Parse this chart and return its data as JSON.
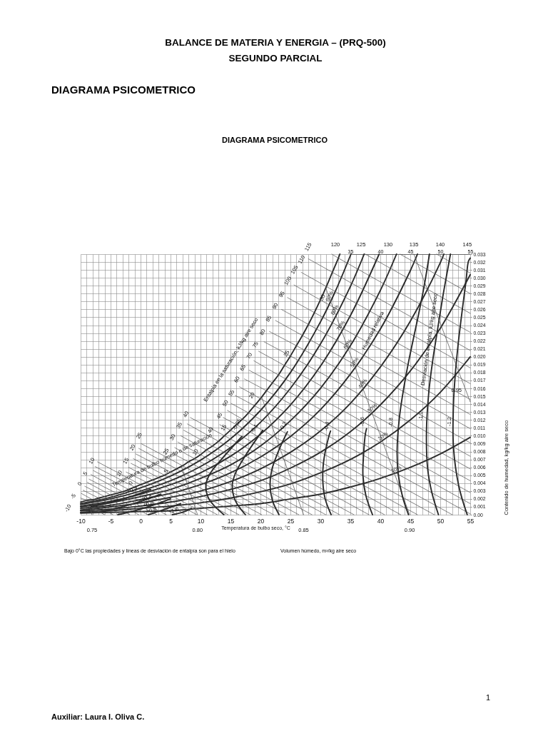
{
  "chart_data": {
    "type": "line",
    "title": "BALANCE DE MATERIA Y ENERGIA – (PRQ-500)",
    "subtitle": "SEGUNDO PARCIAL",
    "xlabel": "Temperatura de bulbo seco, °C",
    "ylabel": "Contenido de humedad, kg/kg aire seco",
    "xlim": [
      -10,
      55
    ],
    "xticks": [
      -10,
      {
        "value": -9,
        "label": null
      },
      {
        "value": -8,
        "label": null
      },
      {
        "value": -7,
        "label": null
      },
      {
        "value": -6,
        "label": null
      },
      -5,
      {
        "value": -4,
        "label": null
      },
      {
        "value": -3,
        "label": null
      },
      {
        "value": -2,
        "label": null
      },
      {
        "value": -1,
        "label": null
      },
      0,
      {
        "value": 1,
        "label": null
      },
      {
        "value": 2,
        "label": null
      },
      {
        "value": 3,
        "label": null
      },
      {
        "value": 4,
        "label": null
      },
      5,
      {
        "value": 6,
        "label": null
      },
      {
        "value": 7,
        "label": null
      },
      {
        "value": 8,
        "label": null
      },
      {
        "value": 9,
        "label": null
      },
      10,
      {
        "value": 11,
        "label": null
      },
      {
        "value": 12,
        "label": null
      },
      {
        "value": 13,
        "label": null
      },
      {
        "value": 14,
        "label": null
      },
      15,
      {
        "value": 16,
        "label": null
      },
      {
        "value": 17,
        "label": null
      },
      {
        "value": 18,
        "label": null
      },
      {
        "value": 19,
        "label": null
      },
      20,
      {
        "value": 21,
        "label": null
      },
      {
        "value": 22,
        "label": null
      },
      {
        "value": 23,
        "label": null
      },
      {
        "value": 24,
        "label": null
      },
      25,
      {
        "value": 26,
        "label": null
      },
      {
        "value": 27,
        "label": null
      },
      {
        "value": 28,
        "label": null
      },
      {
        "value": 29,
        "label": null
      },
      30,
      {
        "value": 31,
        "label": null
      },
      {
        "value": 32,
        "label": null
      },
      {
        "value": 33,
        "label": null
      },
      {
        "value": 34,
        "label": null
      },
      35,
      {
        "value": 36,
        "label": null
      },
      {
        "value": 37,
        "label": null
      },
      {
        "value": 38,
        "label": null
      },
      {
        "value": 39,
        "label": null
      },
      40,
      {
        "value": 41,
        "label": null
      },
      {
        "value": 42,
        "label": null
      },
      {
        "value": 43,
        "label": null
      },
      {
        "value": 44,
        "label": null
      },
      45,
      {
        "value": 46,
        "label": null
      },
      {
        "value": 47,
        "label": null
      },
      {
        "value": 48,
        "label": null
      },
      {
        "value": 49,
        "label": null
      },
      50,
      {
        "value": 51,
        "label": null
      },
      {
        "value": 52,
        "label": null
      },
      {
        "value": 53,
        "label": null
      },
      {
        "value": 54,
        "label": null
      },
      55
    ],
    "x2lim": [
      35,
      55
    ],
    "x2ticks": [
      35,
      40,
      45,
      50,
      55
    ],
    "ylim": [
      0,
      0.033
    ],
    "yticks": [
      {
        "value": 0,
        "label": "0.00"
      },
      0.001,
      0.002,
      0.003,
      0.004,
      0.005,
      0.006,
      0.007,
      0.008,
      0.009,
      {
        "value": 0.01,
        "label": "0.010"
      },
      0.011,
      0.012,
      0.013,
      0.014,
      0.015,
      0.016,
      0.017,
      0.018,
      0.019,
      {
        "value": 0.02,
        "label": "0.020"
      },
      0.021,
      0.022,
      0.023,
      0.024,
      0.025,
      0.026,
      0.027,
      0.028,
      0.029,
      {
        "value": 0.03,
        "label": "0.030"
      },
      0.031,
      0.032,
      0.033
    ],
    "grid": true,
    "series": [
      {
        "name": "10%",
        "color": "#2b2b2b",
        "x": [
          -10,
          -5,
          0,
          5,
          10,
          15,
          20,
          25,
          30,
          35,
          40,
          45,
          50,
          55
        ],
        "values": [
          0.0002,
          0.0003,
          0.0004,
          0.0005,
          0.0008,
          0.0011,
          0.0014,
          0.002,
          0.0026,
          0.0035,
          0.0046,
          0.006,
          0.0077,
          0.0098
        ]
      },
      {
        "name": "20%",
        "color": "#2b2b2b",
        "x": [
          -10,
          -5,
          0,
          5,
          10,
          15,
          20,
          25,
          30,
          35,
          40,
          45,
          50,
          55
        ],
        "values": [
          0.0003,
          0.0005,
          0.0008,
          0.0011,
          0.0015,
          0.0021,
          0.0029,
          0.0039,
          0.0053,
          0.007,
          0.0092,
          0.012,
          0.0155,
          0.02
        ]
      },
      {
        "name": "30%",
        "color": "#2b2b2b",
        "x": [
          -10,
          -5,
          0,
          5,
          10,
          15,
          20,
          25,
          30,
          35,
          40,
          45,
          50,
          55
        ],
        "values": [
          0.0005,
          0.0007,
          0.0011,
          0.0016,
          0.0023,
          0.0032,
          0.0043,
          0.0059,
          0.0079,
          0.0105,
          0.0139,
          0.0182,
          0.0236,
          0.0304
        ]
      },
      {
        "name": "40%",
        "color": "#2b2b2b",
        "x": [
          -10,
          -5,
          0,
          5,
          10,
          15,
          20,
          25,
          30,
          35,
          40,
          45,
          50,
          50.6
        ],
        "values": [
          0.0006,
          0.001,
          0.0015,
          0.0022,
          0.003,
          0.0042,
          0.0058,
          0.0079,
          0.0106,
          0.0141,
          0.0187,
          0.0245,
          0.0319,
          0.033
        ]
      },
      {
        "name": "50%",
        "color": "#2b2b2b",
        "x": [
          -10,
          -5,
          0,
          5,
          10,
          15,
          20,
          25,
          30,
          35,
          40,
          45,
          46.2
        ],
        "values": [
          0.0008,
          0.0012,
          0.0019,
          0.0027,
          0.0038,
          0.0053,
          0.0073,
          0.0099,
          0.0133,
          0.0178,
          0.0235,
          0.0309,
          0.033
        ]
      },
      {
        "name": "60%",
        "color": "#2b2b2b",
        "x": [
          -10,
          -5,
          0,
          5,
          10,
          15,
          20,
          25,
          30,
          35,
          40,
          42.7
        ],
        "values": [
          0.001,
          0.0015,
          0.0023,
          0.0032,
          0.0046,
          0.0063,
          0.0087,
          0.0119,
          0.016,
          0.0214,
          0.0284,
          0.033
        ]
      },
      {
        "name": "70%",
        "color": "#2b2b2b",
        "x": [
          -10,
          -5,
          0,
          5,
          10,
          15,
          20,
          25,
          30,
          35,
          39.8
        ],
        "values": [
          0.0011,
          0.0017,
          0.0026,
          0.0038,
          0.0053,
          0.0074,
          0.0102,
          0.0139,
          0.0188,
          0.0252,
          0.033
        ]
      },
      {
        "name": "80%",
        "color": "#2b2b2b",
        "x": [
          -10,
          -5,
          0,
          5,
          10,
          15,
          20,
          25,
          30,
          35,
          37.3
        ],
        "values": [
          0.0013,
          0.002,
          0.003,
          0.0043,
          0.0061,
          0.0085,
          0.0117,
          0.016,
          0.0216,
          0.0289,
          0.033
        ]
      },
      {
        "name": "90%",
        "color": "#2b2b2b",
        "x": [
          -10,
          -5,
          0,
          5,
          10,
          15,
          20,
          25,
          30,
          32.5,
          35.1
        ],
        "values": [
          0.0014,
          0.0022,
          0.0034,
          0.0049,
          0.0069,
          0.0096,
          0.0132,
          0.018,
          0.0244,
          0.0283,
          0.033
        ]
      },
      {
        "color": "#2b2b2b",
        "x": [
          -10,
          -9,
          -8,
          -7,
          -6,
          -5,
          -4,
          -3,
          -2,
          -1,
          0,
          1,
          2,
          3,
          4,
          5,
          6,
          7,
          8,
          9,
          10,
          11,
          12,
          13,
          14,
          15,
          16,
          17,
          18,
          19,
          20,
          21,
          22,
          23,
          24,
          25,
          26,
          27,
          28,
          29,
          30,
          31,
          32,
          33,
          33.25
        ],
        "values": [
          0.0016,
          0.0018,
          0.0019,
          0.0021,
          0.0023,
          0.0025,
          0.0027,
          0.0029,
          0.0032,
          0.0035,
          0.0038,
          0.0041,
          0.0044,
          0.0047,
          0.005,
          0.0054,
          0.0058,
          0.0062,
          0.0067,
          0.0071,
          0.0076,
          0.0082,
          0.0087,
          0.0093,
          0.01,
          0.0107,
          0.0114,
          0.0121,
          0.0129,
          0.0138,
          0.0147,
          0.0157,
          0.0167,
          0.0177,
          0.0189,
          0.0201,
          0.0214,
          0.0227,
          0.0241,
          0.0256,
          0.0272,
          0.0289,
          0.0307,
          0.0325,
          0.033
        ]
      },
      {
        "color": "#555555",
        "x": [
          -10,
          -6.0
        ],
        "values": [
          0.0016,
          0
        ]
      },
      {
        "color": "#555555",
        "x": [
          -10,
          -9,
          -4.6
        ],
        "values": [
          0.0021,
          0.0018,
          0
        ]
      },
      {
        "color": "#555555",
        "x": [
          -9.9,
          -8,
          -3.2
        ],
        "values": [
          0.0027,
          0.0019,
          0
        ]
      },
      {
        "color": "#555555",
        "x": [
          -9.6,
          -7,
          -1.8
        ],
        "values": [
          0.0031,
          0.0021,
          0
        ]
      },
      {
        "color": "#555555",
        "x": [
          -9.3,
          -6,
          -0.3
        ],
        "values": [
          0.0036,
          0.0023,
          0
        ]
      },
      {
        "color": "#555555",
        "x": [
          -8.9,
          -5,
          1.2
        ],
        "values": [
          0.0041,
          0.0025,
          0
        ]
      },
      {
        "color": "#555555",
        "x": [
          -8.6,
          -4,
          2.7
        ],
        "values": [
          0.0045,
          0.0027,
          0
        ]
      },
      {
        "color": "#555555",
        "x": [
          -8.3,
          -3,
          4.3
        ],
        "values": [
          0.0051,
          0.0029,
          0
        ]
      },
      {
        "color": "#555555",
        "x": [
          -7.9,
          -2,
          6.0
        ],
        "values": [
          0.0056,
          0.0032,
          0
        ]
      },
      {
        "color": "#555555",
        "x": [
          -7.6,
          -1,
          7.6
        ],
        "values": [
          0.0061,
          0.0035,
          0
        ]
      },
      {
        "color": "#555555",
        "x": [
          -7.2,
          0,
          9.4
        ],
        "values": [
          0.0067,
          0.0038,
          0
        ]
      },
      {
        "color": "#555555",
        "x": [
          -2.4,
          1,
          11.1
        ],
        "values": [
          0.0054,
          0.0041,
          0
        ]
      },
      {
        "color": "#555555",
        "x": [
          -2.0,
          2,
          12.8
        ],
        "values": [
          0.006,
          0.0044,
          0
        ]
      },
      {
        "color": "#555555",
        "x": [
          -1.6,
          3,
          14.6
        ],
        "values": [
          0.0065,
          0.0047,
          0
        ]
      },
      {
        "color": "#555555",
        "x": [
          -1.2,
          4,
          16.4
        ],
        "values": [
          0.0071,
          0.005,
          0
        ]
      },
      {
        "color": "#555555",
        "x": [
          -0.8,
          5,
          18.3
        ],
        "values": [
          0.0077,
          0.0054,
          0
        ]
      },
      {
        "color": "#555555",
        "x": [
          -0.3,
          6,
          20.2
        ],
        "values": [
          0.0084,
          0.0058,
          0
        ]
      },
      {
        "color": "#555555",
        "x": [
          0.1,
          7,
          22.2
        ],
        "values": [
          0.009,
          0.0062,
          0
        ]
      },
      {
        "color": "#555555",
        "x": [
          5.2,
          8,
          24.3
        ],
        "values": [
          0.0078,
          0.0067,
          0
        ]
      },
      {
        "color": "#555555",
        "x": [
          5.7,
          9,
          26.4
        ],
        "values": [
          0.0085,
          0.0071,
          0
        ]
      },
      {
        "color": "#555555",
        "x": [
          6.2,
          10,
          28.6
        ],
        "values": [
          0.0092,
          0.0076,
          0
        ]
      },
      {
        "color": "#555555",
        "x": [
          6.7,
          11,
          30.9
        ],
        "values": [
          0.01,
          0.0082,
          0
        ]
      },
      {
        "color": "#555555",
        "x": [
          7.2,
          12,
          33.2
        ],
        "values": [
          0.0107,
          0.0087,
          0
        ]
      },
      {
        "color": "#555555",
        "x": [
          7.8,
          13,
          35.6
        ],
        "values": [
          0.0115,
          0.0093,
          0
        ]
      },
      {
        "color": "#555555",
        "x": [
          8.3,
          14,
          38.1
        ],
        "values": [
          0.0123,
          0.01,
          0
        ]
      },
      {
        "color": "#555555",
        "x": [
          13.2,
          15,
          40.7
        ],
        "values": [
          0.0114,
          0.0107,
          0
        ]
      },
      {
        "color": "#555555",
        "x": [
          13.8,
          16,
          43.4
        ],
        "values": [
          0.0123,
          0.0114,
          0
        ]
      },
      {
        "color": "#555555",
        "x": [
          14.5,
          17,
          46.2
        ],
        "values": [
          0.0132,
          0.0121,
          0
        ]
      },
      {
        "color": "#555555",
        "x": [
          15.1,
          18,
          49.0
        ],
        "values": [
          0.0141,
          0.0129,
          0
        ]
      },
      {
        "color": "#555555",
        "x": [
          15.8,
          19,
          52.0
        ],
        "values": [
          0.0151,
          0.0138,
          0
        ]
      },
      {
        "color": "#555555",
        "x": [
          16.5,
          20,
          55
        ],
        "values": [
          0.0162,
          0.0147,
          0.0001
        ]
      },
      {
        "color": "#555555",
        "x": [
          17.3,
          21,
          55
        ],
        "values": [
          0.0172,
          0.0157,
          0.0014
        ]
      },
      {
        "color": "#555555",
        "x": [
          18.1,
          22,
          55
        ],
        "values": [
          0.0183,
          0.0167,
          0.0028
        ]
      },
      {
        "color": "#555555",
        "x": [
          18.9,
          23,
          55
        ],
        "values": [
          0.0195,
          0.0177,
          0.0043
        ]
      },
      {
        "color": "#555555",
        "x": [
          19.7,
          24,
          55
        ],
        "values": [
          0.0207,
          0.0189,
          0.0058
        ]
      },
      {
        "color": "#555555",
        "x": [
          20.6,
          25,
          55
        ],
        "values": [
          0.0219,
          0.0201,
          0.0074
        ]
      },
      {
        "color": "#555555",
        "x": [
          21.5,
          26,
          55
        ],
        "values": [
          0.0232,
          0.0214,
          0.0091
        ]
      },
      {
        "color": "#555555",
        "x": [
          22.5,
          27,
          55
        ],
        "values": [
          0.0246,
          0.0227,
          0.0109
        ]
      },
      {
        "color": "#555555",
        "x": [
          23.5,
          28,
          55
        ],
        "values": [
          0.026,
          0.0241,
          0.0127
        ]
      },
      {
        "color": "#555555",
        "x": [
          24.5,
          29,
          55
        ],
        "values": [
          0.0275,
          0.0256,
          0.0146
        ]
      },
      {
        "color": "#555555",
        "x": [
          25.6,
          30,
          55
        ],
        "values": [
          0.0291,
          0.0272,
          0.0166
        ]
      },
      {
        "color": "#555555",
        "x": [
          26.8,
          31,
          55
        ],
        "values": [
          0.0307,
          0.0289,
          0.0186
        ]
      },
      {
        "color": "#555555",
        "x": [
          28.0,
          32,
          55
        ],
        "values": [
          0.0324,
          0.0307,
          0.0208
        ]
      },
      {
        "color": "#555555",
        "x": [
          31.9,
          33,
          55
        ],
        "values": [
          0.033,
          0.0325,
          0.0231
        ]
      },
      {
        "color": "#555555",
        "x": [
          37.5,
          55
        ],
        "values": [
          0.033,
          0.0255
        ]
      },
      {
        "color": "#555555",
        "x": [
          43.3,
          55
        ],
        "values": [
          0.033,
          0.028
        ]
      },
      {
        "color": "#555555",
        "x": [
          49.4,
          55
        ],
        "values": [
          0.033,
          0.0306
        ]
      },
      {
        "color": "#555555",
        "x": [
          -8.1,
          -8.9
        ],
        "values": [
          0,
          0.0018
        ]
      },
      {
        "color": "#555555",
        "x": [
          9.5,
          6.8
        ],
        "values": [
          0,
          0.0061
        ]
      },
      {
        "color": "#555555",
        "x": [
          27.2,
          20.2
        ],
        "values": [
          0,
          0.0149
        ]
      },
      {
        "color": "#555555",
        "x": [
          44.9,
          30.9
        ],
        "values": [
          0,
          0.0287
        ]
      },
      {
        "color": "#555555",
        "x": [
          55,
          45.6
        ],
        "values": [
          0.0143,
          0.033
        ]
      },
      {
        "color": "#2b2b2b",
        "x": [
          13.9,
          11.4,
          10.9,
          11.6,
          13.6,
          16.9
        ],
        "values": [
          0,
          0.002,
          0.0038,
          0.0052,
          0.0071,
          0.0099
        ]
      },
      {
        "color": "#2b2b2b",
        "x": [
          17.5,
          15.8,
          15.3,
          15.8,
          17.5,
          20.4
        ],
        "values": [
          0,
          0.0018,
          0.0037,
          0.0052,
          0.0075,
          0.0107
        ]
      },
      {
        "color": "#2b2b2b",
        "x": [
          23.1,
          22.0,
          21.6,
          21.9,
          23.2,
          24.5
        ],
        "values": [
          0,
          0.0018,
          0.0038,
          0.0057,
          0.0084,
          0.0105
        ]
      },
      {
        "color": "#2b2b2b",
        "x": [
          31.8,
          30.8,
          30.4,
          30.5,
          31.4,
          31.7
        ],
        "values": [
          0,
          0.002,
          0.0043,
          0.0065,
          0.0099,
          0.0106
        ]
      },
      {
        "color": "#2b2b2b",
        "x": [
          38.7,
          37.6,
          37.1,
          37.2,
          37.5,
          37.7
        ],
        "values": [
          0,
          0.0024,
          0.005,
          0.0075,
          0.0102,
          0.0109
        ]
      },
      {
        "color": "#2b2b2b",
        "x": [
          44.7,
          43.7,
          43.0,
          42.8,
          43.2,
          44.2,
          45.1,
          46.2,
          47.3,
          48.2
        ],
        "values": [
          0,
          0.0023,
          0.0051,
          0.008,
          0.0124,
          0.0173,
          0.0208,
          0.0247,
          0.0289,
          0.033
        ]
      },
      {
        "color": "#2b2b2b",
        "x": [
          49.7,
          48.6,
          47.9,
          47.7,
          48.1,
          48.7,
          49.5,
          50.4,
          51.2,
          51.7
        ],
        "values": [
          0,
          0.0028,
          0.0058,
          0.0105,
          0.0156,
          0.0193,
          0.0232,
          0.0275,
          0.0309,
          0.033
        ]
      },
      {
        "color": "#2b2b2b",
        "x": [
          54.5,
          53.1,
          52.2,
          52.2,
          52.5,
          53.0,
          53.7,
          54.3,
          54.7,
          55
        ],
        "values": [
          0,
          0.0036,
          0.0086,
          0.0139,
          0.0177,
          0.0217,
          0.0261,
          0.0296,
          0.0321,
          0.0325
        ]
      },
      {
        "color": "#2b2b2b",
        "x": [
          -8.3,
          -3.3,
          1.7
        ],
        "values": [
          0.001,
          0.0019,
          0.0032
        ]
      },
      {
        "color": "#2b2b2b",
        "x": [
          -6.6,
          -1.6,
          3.4
        ],
        "values": [
          0.0004,
          0.0013,
          0.0026
        ]
      },
      {
        "color": "#2b2b2b",
        "x": [
          -3.8,
          0.0,
          5.0
        ],
        "values": [
          0,
          0.0007,
          0.002
        ]
      },
      {
        "color": "#2b2b2b",
        "x": [
          1.3,
          3.7,
          6.7
        ],
        "values": [
          0,
          0.0006,
          0.0014
        ]
      },
      {
        "color": "#2b2b2b",
        "x": [
          5.3,
          7.0,
          8.5
        ],
        "values": [
          0,
          0.0003,
          0.0008
        ]
      }
    ],
    "annotations": [
      "DIAGRAMA PSICOMETRICO",
      "DIAGRAMA PSICOMETRICO",
      "Bajo 0°C las propiedades y líneas de desviación de entalpía son para el hielo",
      "Volumen húmedo, m³/kg aire seco",
      "Auxiliar: Laura I. Oliva C.",
      "1",
      "-10",
      "-5",
      "0",
      "5",
      "10",
      "10",
      "15",
      "20",
      "25",
      "25",
      "30",
      "35",
      "40",
      "40",
      "45",
      "50",
      "55",
      "60",
      "65",
      "70",
      "75",
      "80",
      "85",
      "90",
      "95",
      "100",
      "105",
      "110",
      "115",
      "120",
      "125",
      "130",
      "135",
      "140",
      "145",
      "Entalpía en la saturación, kJ/kg aire seco",
      {
        "text": "Temperatura de bulbo húmedo o de saturación",
        "x": 3.6,
        "y": 0.0069
      },
      {
        "text": "0",
        "x": -1.6,
        "y": 0.004
      },
      {
        "text": "5",
        "x": 4.3,
        "y": 0.0055
      },
      {
        "text": "10",
        "x": 9.2,
        "y": 0.0079
      },
      {
        "text": "15",
        "x": 13.9,
        "y": 0.011
      },
      {
        "text": "20",
        "x": 18.6,
        "y": 0.0151
      },
      {
        "text": "25",
        "x": 24.4,
        "y": 0.0204
      },
      {
        "text": "30",
        "x": 30.4,
        "y": 0.0275
      },
      {
        "text": "Humedad relativa",
        "x": 38.8,
        "y": 0.0233
      },
      {
        "text": "Desviación de entalpía, kJ/kg aire seco",
        "x": 48.2,
        "y": 0.0222
      },
      {
        "text": "-0.05",
        "x": 16.1,
        "y": 0.0114
      },
      {
        "text": "-0.1",
        "x": 19.0,
        "y": 0.0109
      },
      {
        "text": "-0.2",
        "x": 23.8,
        "y": 0.0112
      },
      {
        "text": "-0.4",
        "x": 31.1,
        "y": 0.0112
      },
      {
        "text": "-0.6",
        "x": 37.0,
        "y": 0.0118
      },
      {
        "text": "-0.8",
        "x": 41.8,
        "y": 0.0117
      },
      {
        "text": "-1.0",
        "x": 46.8,
        "y": 0.0125
      },
      {
        "text": "-1.2",
        "x": 51.6,
        "y": 0.0118
      },
      {
        "text": "+0.2",
        "x": -1.4,
        "y": 0.0031
      },
      {
        "text": "+0.4",
        "x": 1.0,
        "y": 0.0021
      },
      {
        "text": "+0.6",
        "x": 1.3,
        "y": 0.0013
      },
      {
        "text": "+0.8",
        "x": 1.8,
        "y": 0.0005
      },
      {
        "text": "+1.0",
        "x": 5.5,
        "y": 0.0005
      },
      {
        "text": "0.75",
        "x": -8.1,
        "y": 0
      },
      {
        "text": "0.80",
        "x": 9.5,
        "y": 0
      },
      {
        "text": "0.85",
        "x": 27.2,
        "y": 0
      },
      {
        "text": "0.90",
        "x": 44.9,
        "y": 0
      },
      {
        "text": "0.95",
        "x": 52.7,
        "y": 0.0157
      }
    ]
  }
}
